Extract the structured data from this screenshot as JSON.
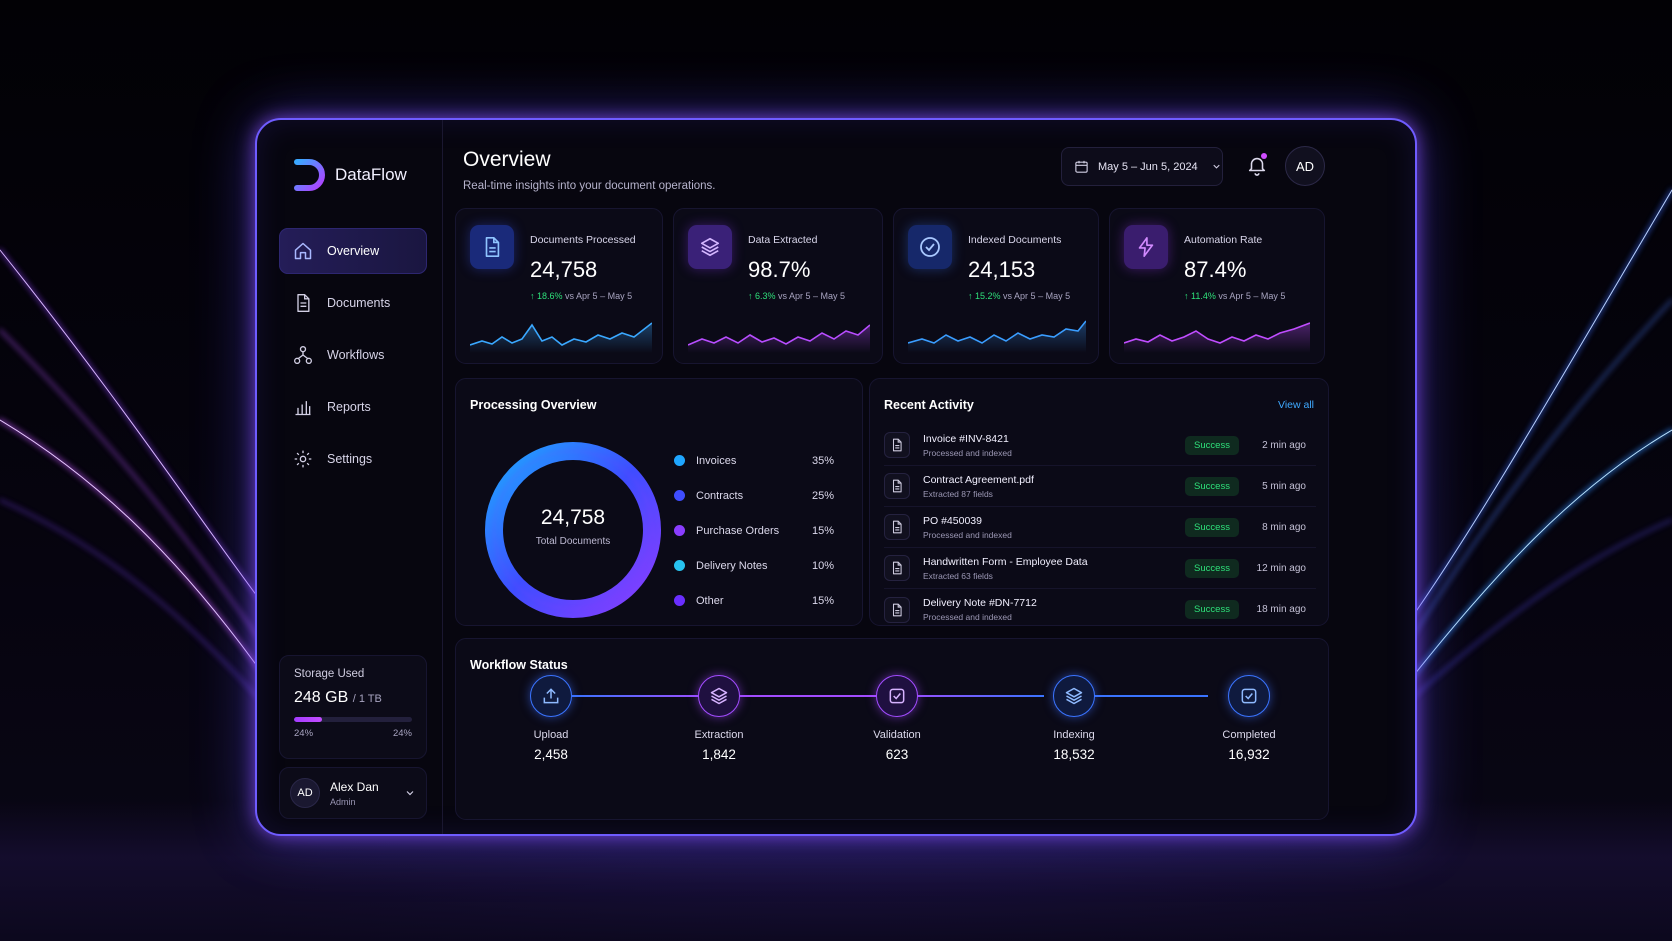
{
  "app": {
    "name": "DataFlow"
  },
  "sidebar": {
    "items": [
      {
        "label": "Overview",
        "icon": "home-icon",
        "active": true
      },
      {
        "label": "Documents",
        "icon": "document-icon",
        "active": false
      },
      {
        "label": "Workflows",
        "icon": "workflow-icon",
        "active": false
      },
      {
        "label": "Reports",
        "icon": "chart-icon",
        "active": false
      },
      {
        "label": "Settings",
        "icon": "gear-icon",
        "active": false
      }
    ],
    "storage": {
      "label": "Storage Used",
      "used": "248 GB",
      "total": "/ 1 TB",
      "percent_left": "24%",
      "percent_right": "24%",
      "fraction": 0.24
    },
    "user": {
      "initials": "AD",
      "name": "Alex Dan",
      "role": "Admin"
    }
  },
  "header": {
    "title": "Overview",
    "subtitle": "Real-time insights into your document operations.",
    "date_range": "May 5 – Jun 5, 2024",
    "avatar": "AD"
  },
  "stats": [
    {
      "label": "Documents Processed",
      "value": "24,758",
      "delta": "↑ 18.6%",
      "compare": "vs Apr 5 – May 5",
      "icon": "document-icon",
      "color": "#3aa8ff"
    },
    {
      "label": "Data Extracted",
      "value": "98.7%",
      "delta": "↑ 6.3%",
      "compare": "vs Apr 5 – May 5",
      "icon": "layers-icon",
      "color": "#b84dff"
    },
    {
      "label": "Indexed Documents",
      "value": "24,153",
      "delta": "↑ 15.2%",
      "compare": "vs Apr 5 – May 5",
      "icon": "check-circle-icon",
      "color": "#3a9dff"
    },
    {
      "label": "Automation Rate",
      "value": "87.4%",
      "delta": "↑ 11.4%",
      "compare": "vs Apr 5 – May 5",
      "icon": "bolt-icon",
      "color": "#c04dff"
    }
  ],
  "processing": {
    "title": "Processing Overview",
    "total": "24,758",
    "total_label": "Total Documents",
    "legend": [
      {
        "label": "Invoices",
        "value": "35%",
        "color": "#1fa6ff"
      },
      {
        "label": "Contracts",
        "value": "25%",
        "color": "#3f4dff"
      },
      {
        "label": "Purchase Orders",
        "value": "15%",
        "color": "#8a3dff"
      },
      {
        "label": "Delivery Notes",
        "value": "10%",
        "color": "#27c3f0"
      },
      {
        "label": "Other",
        "value": "15%",
        "color": "#6a2eff"
      }
    ]
  },
  "activity": {
    "title": "Recent Activity",
    "view_all": "View all",
    "items": [
      {
        "title": "Invoice #INV-8421",
        "sub": "Processed and indexed",
        "status": "Success",
        "time": "2 min ago"
      },
      {
        "title": "Contract Agreement.pdf",
        "sub": "Extracted 87 fields",
        "status": "Success",
        "time": "5 min ago"
      },
      {
        "title": "PO #450039",
        "sub": "Processed and indexed",
        "status": "Success",
        "time": "8 min ago"
      },
      {
        "title": "Handwritten Form - Employee Data",
        "sub": "Extracted 63 fields",
        "status": "Success",
        "time": "12 min ago"
      },
      {
        "title": "Delivery Note #DN-7712",
        "sub": "Processed and indexed",
        "status": "Success",
        "time": "18 min ago"
      }
    ]
  },
  "workflow": {
    "title": "Workflow Status",
    "steps": [
      {
        "label": "Upload",
        "value": "2,458",
        "icon": "upload-icon",
        "tone": "blue"
      },
      {
        "label": "Extraction",
        "value": "1,842",
        "icon": "layers-icon",
        "tone": "purple"
      },
      {
        "label": "Validation",
        "value": "623",
        "icon": "check-square-icon",
        "tone": "purple"
      },
      {
        "label": "Indexing",
        "value": "18,532",
        "icon": "layers-icon",
        "tone": "blue"
      },
      {
        "label": "Completed",
        "value": "16,932",
        "icon": "check-square-icon",
        "tone": "blue"
      }
    ]
  }
}
